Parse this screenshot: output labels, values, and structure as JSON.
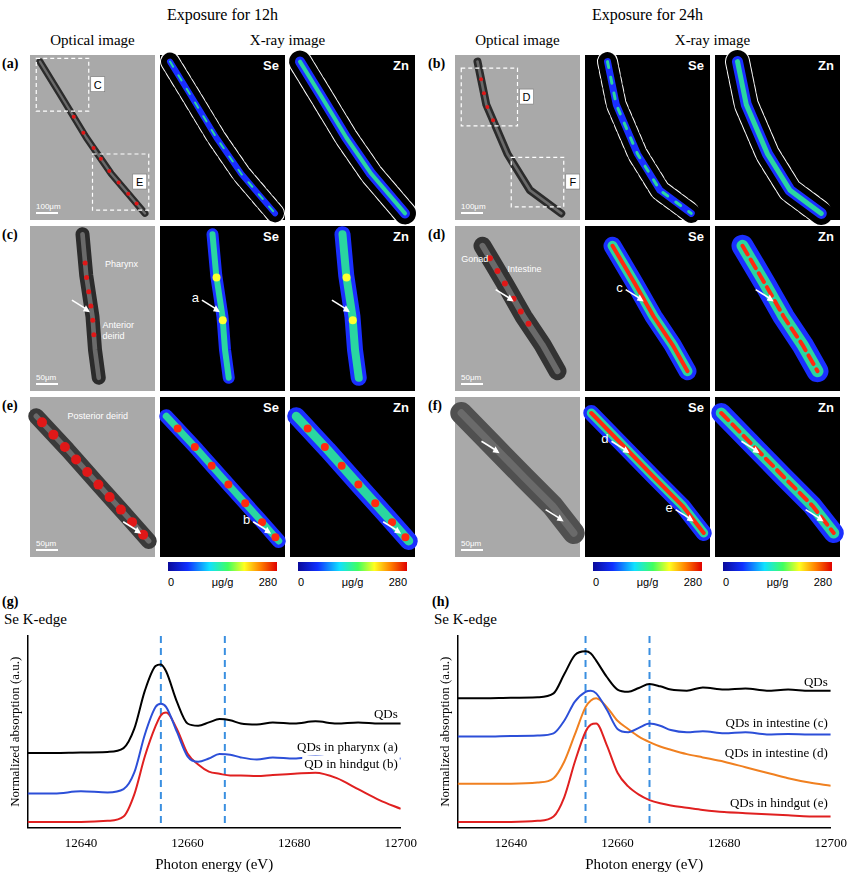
{
  "header": {
    "titles": [
      "Exposure for 12h",
      "Exposure for 24h"
    ],
    "column_titles": [
      "Optical image",
      "X-ray image"
    ]
  },
  "panels": [
    {
      "letter": "(a)",
      "boxes": [
        "C",
        "E"
      ],
      "scale_bar": "100μm",
      "maps": [
        "Se",
        "Zn"
      ]
    },
    {
      "letter": "(b)",
      "boxes": [
        "D",
        "F"
      ],
      "scale_bar": "100μm",
      "maps": [
        "Se",
        "Zn"
      ]
    },
    {
      "letter": "(c)",
      "labels": [
        "Pharynx",
        "Anterior deirid"
      ],
      "scale_bar": "50μm",
      "maps": [
        "Se",
        "Zn"
      ],
      "markers": [
        "a"
      ]
    },
    {
      "letter": "(d)",
      "labels": [
        "Gonad",
        "Intestine"
      ],
      "scale_bar": "50μm",
      "maps": [
        "Se",
        "Zn"
      ],
      "markers": [
        "c"
      ]
    },
    {
      "letter": "(e)",
      "labels": [
        "Posterior deirid"
      ],
      "scale_bar": "50μm",
      "maps": [
        "Se",
        "Zn"
      ],
      "markers": [
        "b"
      ]
    },
    {
      "letter": "(f)",
      "scale_bar": "50μm",
      "maps": [
        "Se",
        "Zn"
      ],
      "markers": [
        "d",
        "e"
      ]
    }
  ],
  "colorbar": {
    "range": [
      0,
      280
    ],
    "unit": "μg/g"
  },
  "chart_data": [
    {
      "type": "line",
      "panel": "(g)",
      "title": "Se K-edge",
      "x_label": "Photon energy (eV)",
      "y_label": "Normalized absorption (a.u.)",
      "x": [
        12630,
        12635,
        12640,
        12645,
        12648,
        12650,
        12652,
        12654,
        12655,
        12656,
        12658,
        12660,
        12662,
        12664,
        12666,
        12668,
        12670,
        12673,
        12676,
        12680,
        12684,
        12688,
        12692,
        12696,
        12700
      ],
      "series": [
        {
          "name": "QDs",
          "color": "#000000",
          "values": [
            1.36,
            1.36,
            1.37,
            1.38,
            1.45,
            1.8,
            2.5,
            2.95,
            2.98,
            2.85,
            2.3,
            1.9,
            1.86,
            1.92,
            1.98,
            1.96,
            1.9,
            1.88,
            1.92,
            1.9,
            1.94,
            1.9,
            1.92,
            1.9,
            1.9
          ]
        },
        {
          "name": "QDs in pharynx (a)",
          "color": "#2c4fd8",
          "values": [
            0.62,
            0.62,
            0.66,
            0.64,
            0.7,
            1.0,
            1.7,
            2.2,
            2.26,
            2.2,
            1.75,
            1.3,
            1.2,
            1.26,
            1.34,
            1.33,
            1.28,
            1.24,
            1.28,
            1.26,
            1.3,
            1.26,
            1.27,
            1.25,
            1.26
          ]
        },
        {
          "name": "QD in hindgut (b)",
          "color": "#e02020",
          "values": [
            0.1,
            0.1,
            0.1,
            0.12,
            0.2,
            0.6,
            1.3,
            1.85,
            2.05,
            2.1,
            1.8,
            1.35,
            1.15,
            1.02,
            0.98,
            0.95,
            0.95,
            0.94,
            0.96,
            0.98,
            1.0,
            0.9,
            0.7,
            0.5,
            0.34
          ]
        }
      ],
      "xlim": [
        12630,
        12700
      ],
      "xticks": [
        12640,
        12660,
        12680,
        12700
      ],
      "ylim": [
        0,
        3.5
      ],
      "tick_labels": "x",
      "grid": false,
      "vlines": [
        12655,
        12667
      ]
    },
    {
      "type": "line",
      "panel": "(h)",
      "title": "Se K-edge",
      "x_label": "Photon energy (eV)",
      "y_label": "Normalized absorption (a.u.)",
      "x": [
        12630,
        12635,
        12640,
        12645,
        12648,
        12650,
        12652,
        12654,
        12655,
        12656,
        12658,
        12660,
        12662,
        12664,
        12666,
        12668,
        12670,
        12673,
        12676,
        12680,
        12684,
        12688,
        12692,
        12696,
        12700
      ],
      "series": [
        {
          "name": "QDs",
          "color": "#000000",
          "values": [
            2.36,
            2.36,
            2.37,
            2.38,
            2.45,
            2.8,
            3.15,
            3.22,
            3.18,
            3.05,
            2.75,
            2.52,
            2.48,
            2.55,
            2.62,
            2.58,
            2.52,
            2.5,
            2.56,
            2.52,
            2.54,
            2.5,
            2.52,
            2.5,
            2.5
          ]
        },
        {
          "name": "QDs in intestine (c)",
          "color": "#2c4fd8",
          "values": [
            1.66,
            1.66,
            1.67,
            1.68,
            1.72,
            1.95,
            2.3,
            2.48,
            2.5,
            2.45,
            2.15,
            1.8,
            1.74,
            1.82,
            1.9,
            1.86,
            1.78,
            1.74,
            1.76,
            1.72,
            1.74,
            1.7,
            1.71,
            1.7,
            1.7
          ]
        },
        {
          "name": "QDs in intestine (d)",
          "color": "#f08020",
          "values": [
            0.8,
            0.8,
            0.8,
            0.82,
            0.9,
            1.2,
            1.7,
            2.2,
            2.32,
            2.36,
            2.2,
            1.95,
            1.8,
            1.66,
            1.56,
            1.48,
            1.42,
            1.34,
            1.28,
            1.2,
            1.1,
            1.0,
            0.9,
            0.82,
            0.76
          ]
        },
        {
          "name": "QDs in hindgut (e)",
          "color": "#e02020",
          "values": [
            0.1,
            0.1,
            0.1,
            0.12,
            0.2,
            0.55,
            1.2,
            1.75,
            1.88,
            1.9,
            1.5,
            1.0,
            0.75,
            0.6,
            0.5,
            0.44,
            0.4,
            0.36,
            0.32,
            0.28,
            0.26,
            0.24,
            0.22,
            0.2,
            0.2
          ]
        }
      ],
      "xlim": [
        12630,
        12700
      ],
      "xticks": [
        12640,
        12660,
        12680,
        12700
      ],
      "ylim": [
        0,
        3.5
      ],
      "tick_labels": "x",
      "grid": false,
      "vlines": [
        12654,
        12666
      ]
    }
  ]
}
